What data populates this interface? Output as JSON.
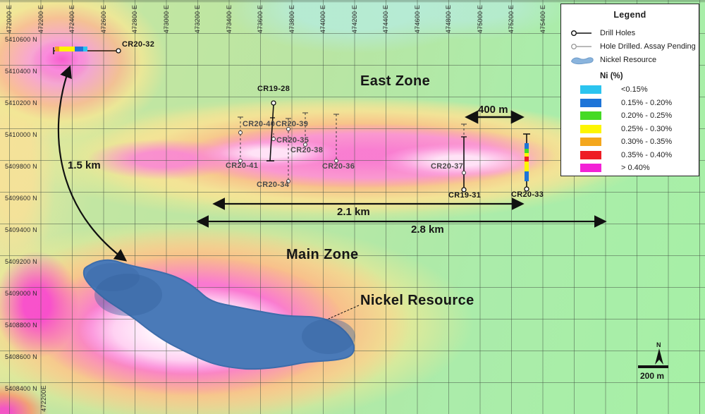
{
  "legend": {
    "title": "Legend",
    "items": [
      {
        "label": "Drill Holes"
      },
      {
        "label": "Hole Drilled. Assay Pending"
      },
      {
        "label": "Nickel Resource"
      }
    ],
    "ni_title": "Ni (%)",
    "classes": [
      {
        "label": "<0.15%",
        "color": "#2bc4ef"
      },
      {
        "label": "0.15% - 0.20%",
        "color": "#1d74d8"
      },
      {
        "label": "0.20% - 0.25%",
        "color": "#45da25"
      },
      {
        "label": "0.25% - 0.30%",
        "color": "#fdf503"
      },
      {
        "label": "0.30% - 0.35%",
        "color": "#f4a71d"
      },
      {
        "label": "0.35% - 0.40%",
        "color": "#ee1c24"
      },
      {
        "label": "> 0.40%",
        "color": "#f322d6"
      }
    ]
  },
  "axes": {
    "easting": [
      "472000 E",
      "472200 E",
      "472400 E",
      "472600 E",
      "472800 E",
      "473000 E",
      "473200 E",
      "473400 E",
      "473600 E",
      "473800 E",
      "474000 E",
      "474200 E",
      "474400 E",
      "474600 E",
      "474800 E",
      "475000 E",
      "475200 E",
      "475400 E"
    ],
    "northing": [
      "5410600 N",
      "5410400 N",
      "5410200 N",
      "5410000 N",
      "5409800 N",
      "5409600 N",
      "5409400 N",
      "5409200 N",
      "5409000 N",
      "5408800 N",
      "5408600 N",
      "5408400 N"
    ],
    "bottom_easting": "472200E"
  },
  "zones": {
    "east": "East Zone",
    "main": "Main Zone",
    "nickel": "Nickel Resource"
  },
  "annotations": {
    "d400": "400 m",
    "d1_5": "1.5 km",
    "d2_1": "2.1 km",
    "d2_8": "2.8 km"
  },
  "scalebar": {
    "north": "N",
    "label": "200 m"
  },
  "drill_holes": {
    "cr20_32": "CR20-32",
    "cr19_28": "CR19-28",
    "cr20_40": "CR20-40",
    "cr20_39": "CR20-39",
    "cr20_35": "CR20-35",
    "cr20_38": "CR20-38",
    "cr20_41": "CR20-41",
    "cr20_36": "CR20-36",
    "cr20_34": "CR20-34",
    "cr20_37": "CR20-37",
    "cr19_31": "CR19-31",
    "cr20_33": "CR20-33"
  }
}
